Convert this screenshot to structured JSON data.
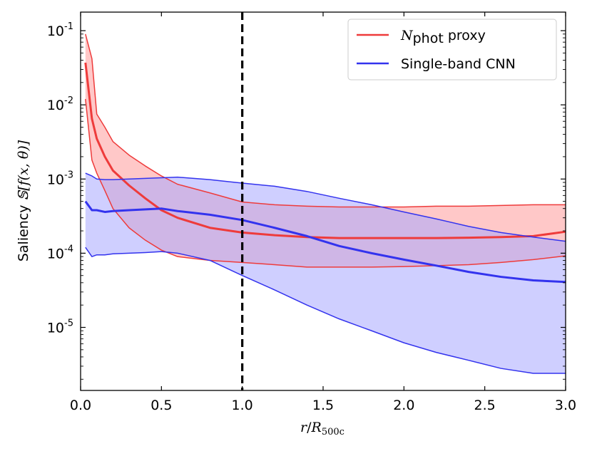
{
  "chart_data": {
    "type": "line",
    "xlabel": {
      "var": "r",
      "slash": "/",
      "R": "R",
      "sub": "500c"
    },
    "ylabel": {
      "text": "Saliency",
      "math": "𝕊[f(x, θ)]"
    },
    "xlim": [
      0.0,
      3.0
    ],
    "ylim_log10": [
      -5.85,
      -0.75
    ],
    "yscale": "log",
    "x_ticks": [
      {
        "value": 0.0,
        "label": "0.0"
      },
      {
        "value": 0.5,
        "label": "0.5"
      },
      {
        "value": 1.0,
        "label": "1.0"
      },
      {
        "value": 1.5,
        "label": "1.5"
      },
      {
        "value": 2.0,
        "label": "2.0"
      },
      {
        "value": 2.5,
        "label": "2.5"
      },
      {
        "value": 3.0,
        "label": "3.0"
      }
    ],
    "y_ticks": [
      {
        "value": 0.1,
        "base": "10",
        "exp": "-1"
      },
      {
        "value": 0.01,
        "base": "10",
        "exp": "-2"
      },
      {
        "value": 0.001,
        "base": "10",
        "exp": "-3"
      },
      {
        "value": 0.0001,
        "base": "10",
        "exp": "-4"
      },
      {
        "value": 1e-05,
        "base": "10",
        "exp": "-5"
      }
    ],
    "reference_line": {
      "x": 1.0,
      "style": "dashed",
      "color": "#000000"
    },
    "legend": {
      "position": "top-right"
    },
    "series": [
      {
        "key": "nphot",
        "legend_math": "N",
        "legend_sub": "phot",
        "legend_text": " proxy",
        "color": "#ee3b3b",
        "fill": "#ff9a9a",
        "x": [
          0.03,
          0.07,
          0.1,
          0.15,
          0.2,
          0.3,
          0.4,
          0.5,
          0.6,
          0.8,
          1.0,
          1.2,
          1.4,
          1.6,
          1.8,
          2.0,
          2.2,
          2.4,
          2.6,
          2.8,
          3.0
        ],
        "median": [
          0.037,
          0.0065,
          0.0035,
          0.002,
          0.0013,
          0.00082,
          0.00055,
          0.00038,
          0.0003,
          0.00022,
          0.00019,
          0.000175,
          0.000165,
          0.00016,
          0.00016,
          0.00016,
          0.00016,
          0.000162,
          0.000165,
          0.00017,
          0.000195
        ],
        "upper": [
          0.09,
          0.042,
          0.0075,
          0.005,
          0.0032,
          0.0021,
          0.0015,
          0.0011,
          0.00085,
          0.00065,
          0.00049,
          0.00045,
          0.00043,
          0.00042,
          0.00042,
          0.00042,
          0.00043,
          0.00043,
          0.00044,
          0.00045,
          0.00045
        ],
        "lower": [
          0.012,
          0.0018,
          0.0012,
          0.0007,
          0.0004,
          0.00022,
          0.00015,
          0.00011,
          9e-05,
          8e-05,
          7.5e-05,
          7e-05,
          6.5e-05,
          6.5e-05,
          6.5e-05,
          6.6e-05,
          6.8e-05,
          7e-05,
          7.5e-05,
          8.2e-05,
          9.2e-05
        ]
      },
      {
        "key": "cnn",
        "legend_text": "Single-band CNN",
        "color": "#3333ee",
        "fill": "#a8a8ff",
        "x": [
          0.03,
          0.07,
          0.1,
          0.15,
          0.2,
          0.3,
          0.4,
          0.5,
          0.6,
          0.8,
          1.0,
          1.2,
          1.4,
          1.6,
          1.8,
          2.0,
          2.2,
          2.4,
          2.6,
          2.8,
          3.0
        ],
        "median": [
          0.0005,
          0.00038,
          0.00038,
          0.00036,
          0.00037,
          0.00038,
          0.00039,
          0.0004,
          0.00037,
          0.00033,
          0.00028,
          0.00022,
          0.00017,
          0.000125,
          0.0001,
          8.2e-05,
          6.8e-05,
          5.6e-05,
          4.8e-05,
          4.3e-05,
          4.1e-05
        ],
        "upper": [
          0.0012,
          0.0011,
          0.001,
          0.00098,
          0.00098,
          0.001,
          0.00102,
          0.00104,
          0.00106,
          0.00098,
          0.00088,
          0.0008,
          0.00068,
          0.00055,
          0.00045,
          0.00036,
          0.00029,
          0.00023,
          0.00019,
          0.000165,
          0.000145
        ],
        "lower": [
          0.00012,
          9e-05,
          9.5e-05,
          9.5e-05,
          9.8e-05,
          0.0001,
          0.000102,
          0.000105,
          0.0001,
          8e-05,
          5e-05,
          3.2e-05,
          2e-05,
          1.3e-05,
          9e-06,
          6.2e-06,
          4.6e-06,
          3.6e-06,
          2.8e-06,
          2.4e-06,
          2.4e-06
        ]
      }
    ]
  }
}
